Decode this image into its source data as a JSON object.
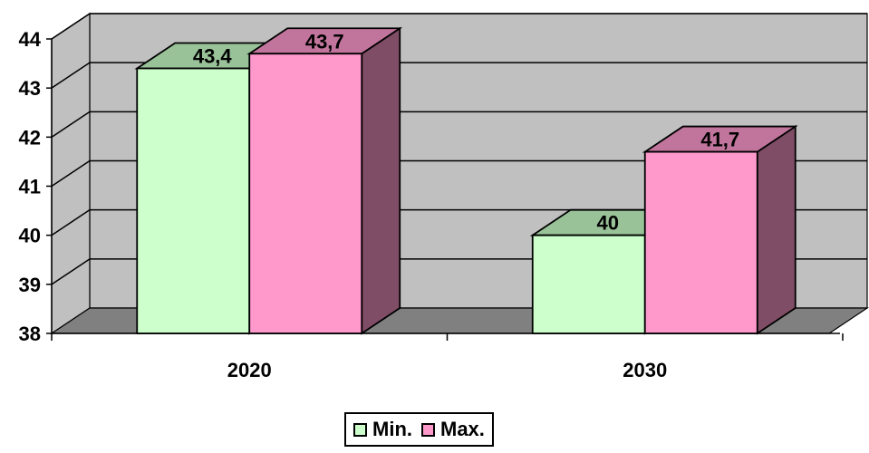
{
  "chart_data": {
    "type": "bar",
    "categories": [
      "2020",
      "2030"
    ],
    "series": [
      {
        "name": "Min.",
        "values": [
          43.4,
          40
        ],
        "labels": [
          "43,4",
          "40"
        ],
        "color": "#ccffcc",
        "top_color": "#99c299",
        "side_color": "#7aa37a"
      },
      {
        "name": "Max.",
        "values": [
          43.7,
          41.7
        ],
        "labels": [
          "43,7",
          "41,7"
        ],
        "color": "#ff99cc",
        "top_color": "#c2759c",
        "side_color": "#804d66"
      }
    ],
    "ylim": [
      38,
      44
    ],
    "yticks": [
      "38",
      "39",
      "40",
      "41",
      "42",
      "43",
      "44"
    ],
    "grid": true,
    "legend": "bottom",
    "wall_color": "#c0c0c0",
    "floor_color": "#808080",
    "title": "",
    "xlabel": "",
    "ylabel": ""
  }
}
